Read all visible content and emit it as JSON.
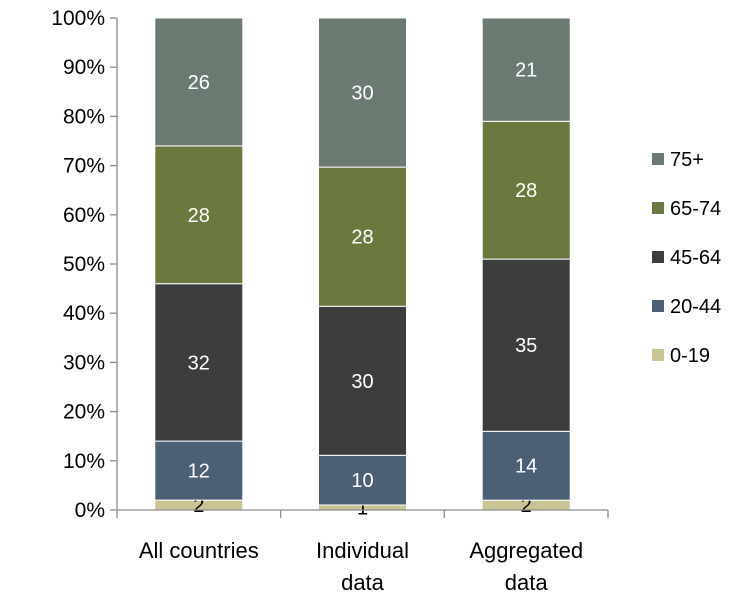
{
  "chart_data": {
    "type": "bar",
    "stacked": true,
    "percent": true,
    "categories": [
      "All countries",
      "Individual data",
      "Aggregated data"
    ],
    "category_lines": [
      [
        "All countries"
      ],
      [
        "Individual",
        "data"
      ],
      [
        "Aggregated",
        "data"
      ]
    ],
    "series": [
      {
        "name": "0-19",
        "values": [
          2,
          1,
          2
        ],
        "labels": [
          "2",
          "1",
          "2"
        ],
        "color": "#c9c493",
        "label_color": "#000000"
      },
      {
        "name": "20-44",
        "values": [
          12,
          10,
          14
        ],
        "labels": [
          "12",
          "10",
          "14"
        ],
        "color": "#4b6075",
        "label_color": "#ffffff"
      },
      {
        "name": "45-64",
        "values": [
          32,
          30,
          35
        ],
        "labels": [
          "32",
          "30",
          "35"
        ],
        "color": "#3b3e3d",
        "label_color": "#ffffff"
      },
      {
        "name": "65-74",
        "values": [
          28,
          28,
          28
        ],
        "labels": [
          "28",
          "28",
          "28"
        ],
        "color": "#6a7a3e",
        "label_color": "#ffffff"
      },
      {
        "name": "75+",
        "values": [
          26,
          30,
          21
        ],
        "labels": [
          "26",
          "30",
          "21"
        ],
        "color": "#6b7a70",
        "label_color": "#ffffff"
      }
    ],
    "ylim": [
      0,
      100
    ],
    "yticks": [
      0,
      10,
      20,
      30,
      40,
      50,
      60,
      70,
      80,
      90,
      100
    ],
    "ytick_labels": [
      "0%",
      "10%",
      "20%",
      "30%",
      "40%",
      "50%",
      "60%",
      "70%",
      "80%",
      "90%",
      "100%"
    ],
    "legend": {
      "position": "right",
      "order": [
        "75+",
        "65-74",
        "45-64",
        "20-44",
        "0-19"
      ]
    },
    "title": "",
    "xlabel": "",
    "ylabel": "",
    "grid": false
  }
}
